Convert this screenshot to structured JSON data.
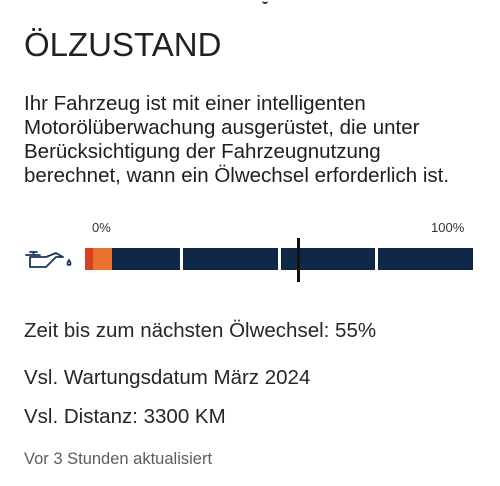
{
  "screen": {
    "title": "ÖLZUSTAND",
    "description": "Ihr Fahrzeug ist mit einer intelligenten Motorölüberwachung ausgerüstet, die unter Berücksichtigung der Fahrzeugnutzung berechnet, wann ein Ölwechsel erforderlich ist."
  },
  "gauge": {
    "min_label": "0%",
    "max_label": "100%",
    "icon": "oil-can-icon",
    "fill_fraction": 0.07,
    "marker_fraction": 0.55,
    "colors": {
      "track": "#102848",
      "fill_low": "#d9401f",
      "fill": "#e8722e",
      "marker": "#111111"
    }
  },
  "info": {
    "remaining": "Zeit bis zum nächsten Ölwechsel: 55%",
    "service_date": "Vsl. Wartungsdatum März 2024",
    "distance": "Vsl. Distanz: 3300 KM",
    "updated": "Vor 3 Stunden aktualisiert"
  }
}
